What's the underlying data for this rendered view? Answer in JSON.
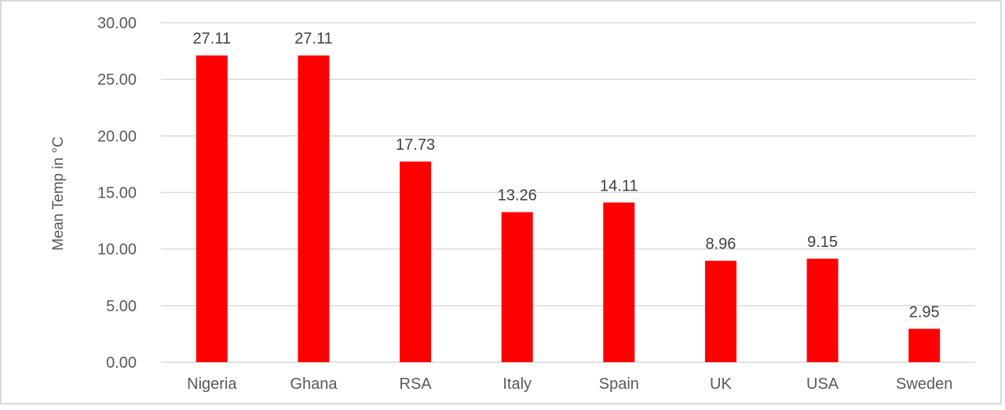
{
  "chart_data": {
    "type": "bar",
    "title": "",
    "xlabel": "",
    "ylabel": "Mean Temp in °C",
    "categories": [
      "Nigeria",
      "Ghana",
      "RSA",
      "Italy",
      "Spain",
      "UK",
      "USA",
      "Sweden"
    ],
    "values": [
      27.11,
      27.11,
      17.73,
      13.26,
      14.11,
      8.96,
      9.15,
      2.95
    ],
    "data_labels": [
      "27.11",
      "27.11",
      "17.73",
      "13.26",
      "14.11",
      "8.96",
      "9.15",
      "2.95"
    ],
    "ylim": [
      0,
      30
    ],
    "yticks": [
      "0.00",
      "5.00",
      "10.00",
      "15.00",
      "20.00",
      "25.00",
      "30.00"
    ],
    "grid": true,
    "legend": "none",
    "colors": {
      "bar": "#ff0000",
      "grid": "#d9d9d9",
      "text": "#595959"
    }
  }
}
